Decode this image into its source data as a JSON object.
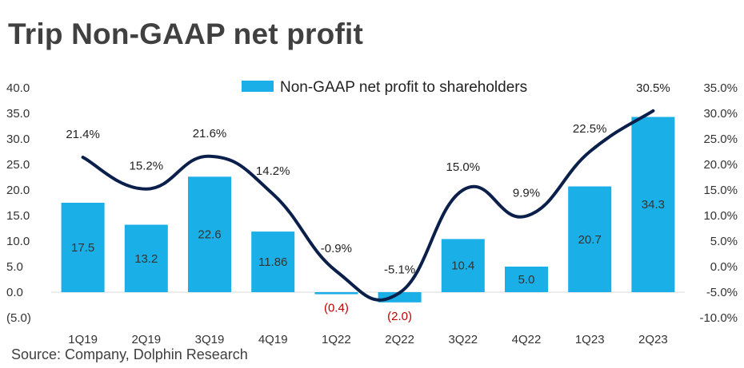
{
  "title": "Trip Non-GAAP net profit",
  "source": "Source: Company, Dolphin Research",
  "colors": {
    "bar": "#1aafe6",
    "line": "#0b1f4b",
    "negative_label": "#c00000"
  },
  "chart_data": {
    "type": "bar",
    "categories": [
      "1Q19",
      "2Q19",
      "3Q19",
      "4Q19",
      "1Q22",
      "2Q22",
      "3Q22",
      "4Q22",
      "1Q23",
      "2Q23"
    ],
    "series": [
      {
        "name": "Non-GAAP net profit to shareholders",
        "type": "bar",
        "axis": "left",
        "values": [
          17.5,
          13.2,
          22.6,
          11.86,
          -0.4,
          -2.0,
          10.4,
          5.0,
          20.7,
          34.3
        ],
        "labels": [
          "17.5",
          "13.2",
          "22.6",
          "11.86",
          "(0.4)",
          "(2.0)",
          "10.4",
          "5.0",
          "20.7",
          "34.3"
        ]
      },
      {
        "type": "line",
        "axis": "right",
        "values": [
          21.4,
          15.2,
          21.6,
          14.2,
          -0.9,
          -5.1,
          15.0,
          9.9,
          22.5,
          30.5
        ],
        "labels": [
          "21.4%",
          "15.2%",
          "21.6%",
          "14.2%",
          "-0.9%",
          "-5.1%",
          "15.0%",
          "9.9%",
          "22.5%",
          "30.5%"
        ]
      }
    ],
    "y_left": {
      "ylim": [
        -5,
        40
      ],
      "ticks": [
        "(5.0)",
        "0.0",
        "5.0",
        "10.0",
        "15.0",
        "20.0",
        "25.0",
        "30.0",
        "35.0",
        "40.0"
      ]
    },
    "y_right": {
      "ylim": [
        -10,
        35
      ],
      "ticks": [
        "-10.0%",
        "-5.0%",
        "0.0%",
        "5.0%",
        "10.0%",
        "15.0%",
        "20.0%",
        "25.0%",
        "30.0%",
        "35.0%"
      ]
    },
    "legend": "top-center",
    "grid": false
  }
}
